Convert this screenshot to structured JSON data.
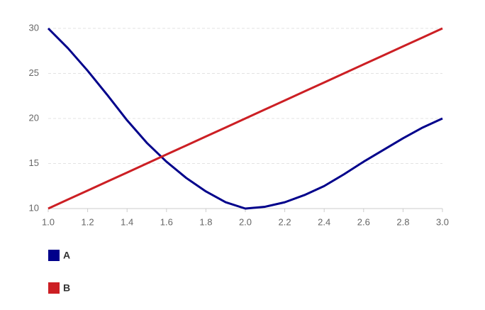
{
  "chart_data": {
    "type": "line",
    "x": [
      1.0,
      1.1,
      1.2,
      1.3,
      1.4,
      1.5,
      1.6,
      1.7,
      1.8,
      1.9,
      2.0,
      2.1,
      2.2,
      2.3,
      2.4,
      2.5,
      2.6,
      2.7,
      2.8,
      2.9,
      3.0
    ],
    "series": [
      {
        "name": "A",
        "color": "#00008b",
        "values": [
          30,
          27.8,
          25.3,
          22.6,
          19.8,
          17.3,
          15.2,
          13.4,
          11.9,
          10.7,
          10,
          10.2,
          10.7,
          11.5,
          12.5,
          13.8,
          15.2,
          16.5,
          17.8,
          19.0,
          20
        ]
      },
      {
        "name": "B",
        "color": "#cc1f24",
        "values": [
          10,
          11,
          12,
          13,
          14,
          15,
          16,
          17,
          18,
          19,
          20,
          21,
          22,
          23,
          24,
          25,
          26,
          27,
          28,
          29,
          30
        ]
      }
    ],
    "xlim": [
      1.0,
      3.0
    ],
    "xticks": [
      {
        "value": 1.0,
        "label": "1.0"
      },
      1.2,
      1.4,
      1.6,
      1.8,
      {
        "value": 2.0,
        "label": "2.0"
      },
      2.2,
      2.4,
      2.6,
      2.8,
      {
        "value": 3.0,
        "label": "3.0"
      }
    ],
    "ylim": [
      10,
      30
    ],
    "yticks": [
      10,
      15,
      20,
      25,
      30
    ],
    "grid": true,
    "legend": "bottom-left"
  }
}
